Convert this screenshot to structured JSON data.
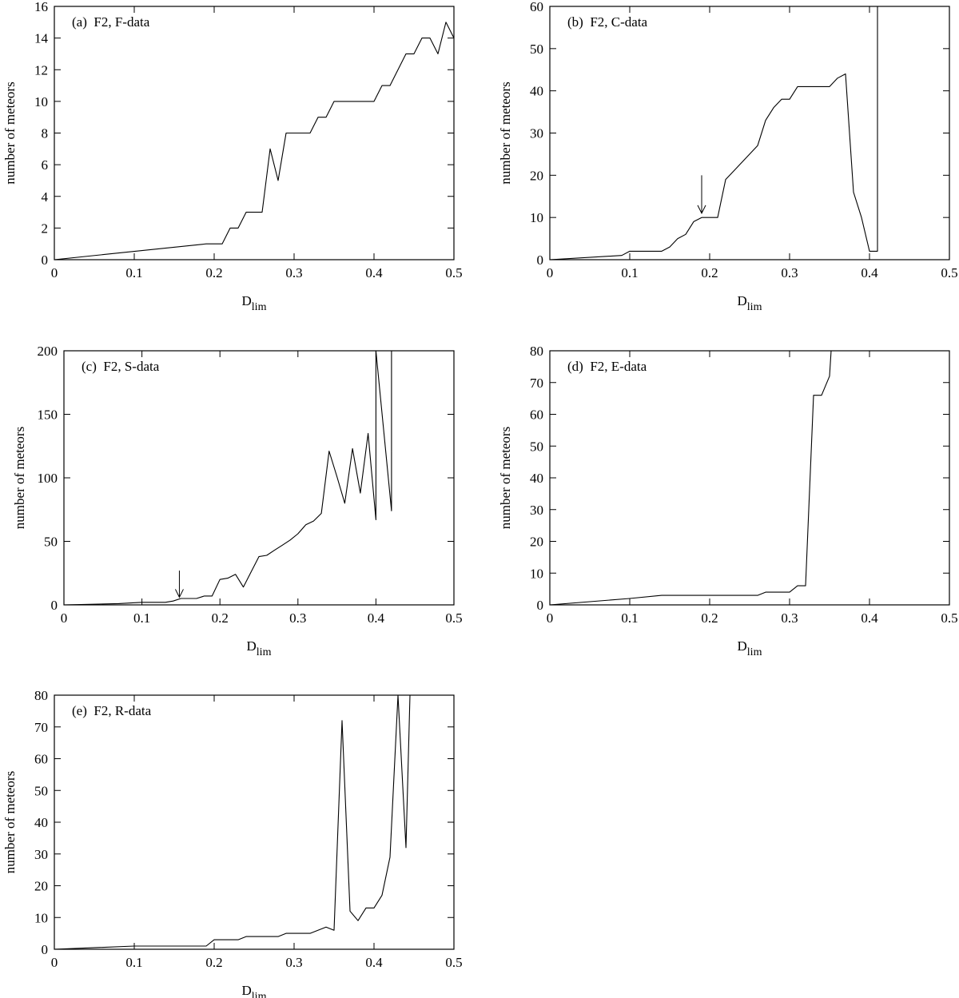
{
  "chart_data": [
    {
      "type": "line",
      "panel_label": "(a)  F2, F-data",
      "xlabel": "D",
      "xlabel_sub": "lim",
      "ylabel": "number of meteors",
      "xlim": [
        0,
        0.5
      ],
      "ylim": [
        0,
        16
      ],
      "xticks": [
        "0",
        "0.1",
        "0.2",
        "0.3",
        "0.4",
        "0.5"
      ],
      "yticks": [
        "0",
        "2",
        "4",
        "6",
        "8",
        "10",
        "12",
        "14",
        "16"
      ],
      "x": [
        0,
        0.19,
        0.21,
        0.22,
        0.23,
        0.24,
        0.25,
        0.26,
        0.27,
        0.28,
        0.29,
        0.3,
        0.31,
        0.32,
        0.33,
        0.34,
        0.35,
        0.36,
        0.37,
        0.38,
        0.39,
        0.4,
        0.41,
        0.42,
        0.43,
        0.44,
        0.45,
        0.46,
        0.47,
        0.48,
        0.49,
        0.5
      ],
      "y": [
        0,
        1,
        1,
        2,
        2,
        3,
        3,
        3,
        7,
        5,
        8,
        8,
        8,
        8,
        9,
        9,
        10,
        10,
        10,
        10,
        10,
        10,
        11,
        11,
        12,
        13,
        13,
        14,
        14,
        13,
        15,
        14
      ],
      "arrow": null
    },
    {
      "type": "line",
      "panel_label": "(b)  F2, C-data",
      "xlabel": "D",
      "xlabel_sub": "lim",
      "ylabel": "number of meteors",
      "xlim": [
        0,
        0.5
      ],
      "ylim": [
        0,
        60
      ],
      "xticks": [
        "0",
        "0.1",
        "0.2",
        "0.3",
        "0.4",
        "0.5"
      ],
      "yticks": [
        "0",
        "10",
        "20",
        "30",
        "40",
        "50",
        "60"
      ],
      "x": [
        0,
        0.09,
        0.1,
        0.14,
        0.15,
        0.16,
        0.17,
        0.18,
        0.19,
        0.2,
        0.21,
        0.22,
        0.23,
        0.24,
        0.25,
        0.26,
        0.27,
        0.28,
        0.29,
        0.3,
        0.31,
        0.32,
        0.33,
        0.34,
        0.35,
        0.36,
        0.37,
        0.38,
        0.39,
        0.4,
        0.41,
        0.41
      ],
      "y": [
        0,
        1,
        2,
        2,
        3,
        5,
        6,
        9,
        10,
        10,
        10,
        19,
        21,
        23,
        25,
        27,
        33,
        36,
        38,
        38,
        41,
        41,
        41,
        41,
        41,
        43,
        44,
        16,
        10,
        2,
        2,
        60
      ],
      "arrow": {
        "x": 0.19,
        "y_tip": 11,
        "y_tail": 20
      }
    },
    {
      "type": "line",
      "panel_label": "(c)  F2, S-data",
      "xlabel": "D",
      "xlabel_sub": "lim",
      "ylabel": "number of meteors",
      "xlim": [
        0,
        0.5
      ],
      "ylim": [
        0,
        200
      ],
      "xticks": [
        "0",
        "0.1",
        "0.2",
        "0.3",
        "0.4",
        "0.5"
      ],
      "yticks": [
        "0",
        "50",
        "100",
        "150",
        "200"
      ],
      "x": [
        0,
        0.07,
        0.1,
        0.13,
        0.14,
        0.15,
        0.17,
        0.18,
        0.19,
        0.2,
        0.21,
        0.22,
        0.23,
        0.24,
        0.25,
        0.26,
        0.27,
        0.28,
        0.29,
        0.3,
        0.31,
        0.32,
        0.33,
        0.34,
        0.35,
        0.36,
        0.37,
        0.38,
        0.39,
        0.4,
        0.4,
        0.42,
        0.42
      ],
      "y": [
        0,
        1,
        2,
        2,
        3,
        5,
        5,
        7,
        7,
        20,
        21,
        24,
        14,
        26,
        38,
        39,
        43,
        47,
        51,
        56,
        63,
        66,
        72,
        121,
        101,
        80,
        123,
        88,
        135,
        67,
        200,
        74,
        200
      ],
      "arrow": {
        "x": 0.148,
        "y_tip": 6,
        "y_tail": 27
      }
    },
    {
      "type": "line",
      "panel_label": "(d)  F2, E-data",
      "xlabel": "D",
      "xlabel_sub": "lim",
      "ylabel": "number of meteors",
      "xlim": [
        0,
        0.5
      ],
      "ylim": [
        0,
        80
      ],
      "xticks": [
        "0",
        "0.1",
        "0.2",
        "0.3",
        "0.4",
        "0.5"
      ],
      "yticks": [
        "0",
        "10",
        "20",
        "30",
        "40",
        "50",
        "60",
        "70",
        "80"
      ],
      "x": [
        0,
        0.1,
        0.14,
        0.26,
        0.27,
        0.3,
        0.31,
        0.32,
        0.33,
        0.34,
        0.35,
        0.352
      ],
      "y": [
        0,
        2,
        3,
        3,
        4,
        4,
        6,
        6,
        66,
        66,
        72,
        80
      ],
      "arrow": null
    },
    {
      "type": "line",
      "panel_label": "(e)  F2, R-data",
      "xlabel": "D",
      "xlabel_sub": "lim",
      "ylabel": "number of meteors",
      "xlim": [
        0,
        0.5
      ],
      "ylim": [
        0,
        80
      ],
      "xticks": [
        "0",
        "0.1",
        "0.2",
        "0.3",
        "0.4",
        "0.5"
      ],
      "yticks": [
        "0",
        "10",
        "20",
        "30",
        "40",
        "50",
        "60",
        "70",
        "80"
      ],
      "x": [
        0,
        0.1,
        0.13,
        0.19,
        0.2,
        0.23,
        0.24,
        0.28,
        0.29,
        0.32,
        0.34,
        0.35,
        0.36,
        0.37,
        0.38,
        0.39,
        0.4,
        0.41,
        0.42,
        0.43,
        0.44,
        0.445
      ],
      "y": [
        0,
        1,
        1,
        1,
        3,
        3,
        4,
        4,
        5,
        5,
        7,
        6,
        72,
        12,
        9,
        13,
        13,
        17,
        29,
        80,
        32,
        80
      ],
      "arrow": null
    }
  ]
}
